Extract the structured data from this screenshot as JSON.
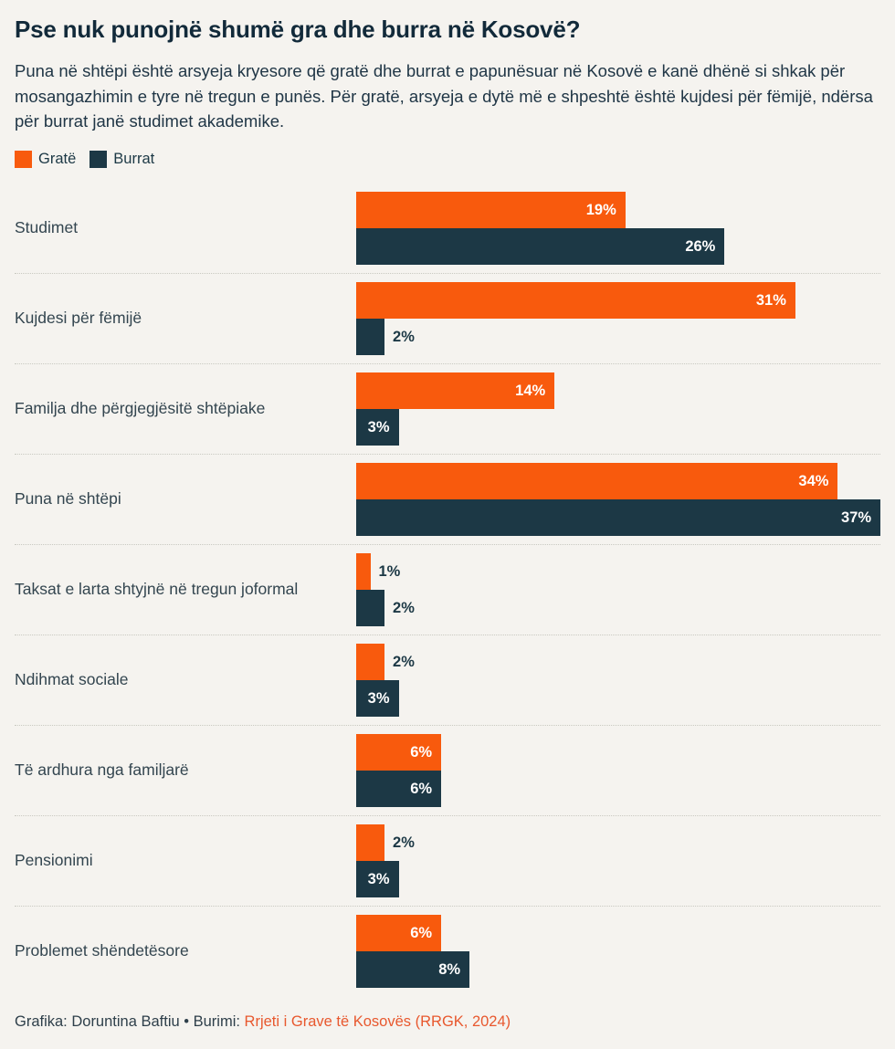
{
  "title": "Pse nuk punojnë shumë gra dhe burra në Kosovë?",
  "subtitle": "Puna në shtëpi është arsyeja kryesore që gratë dhe burrat e papunësuar në Kosovë e kanë dhënë si shkak për mosangazhimin e tyre në tregun e punës. Për gratë, arsyeja e dytë më e shpeshtë është kujdesi për fëmijë, ndërsa për burrat janë studimet akademike.",
  "legend": {
    "items": [
      {
        "label": "Gratë",
        "color": "#f85a0d"
      },
      {
        "label": "Burrat",
        "color": "#1c3845"
      }
    ]
  },
  "chart_data": {
    "type": "bar",
    "orientation": "horizontal",
    "grid": false,
    "legend_position": "top",
    "value_suffix": "%",
    "xmax": 37,
    "inside_label_min": 3,
    "categories": [
      "Studimet",
      "Kujdesi për fëmijë",
      "Familja dhe përgjegjësitë shtëpiake",
      "Puna në shtëpi",
      "Taksat e larta shtyjnë në tregun joformal",
      "Ndihmat sociale",
      "Të ardhura nga familjarë",
      "Pensionimi",
      "Problemet shëndetësore"
    ],
    "series": [
      {
        "name": "Gratë",
        "color": "#f85a0d",
        "values": [
          19,
          31,
          14,
          34,
          1,
          2,
          6,
          2,
          6
        ]
      },
      {
        "name": "Burrat",
        "color": "#1c3845",
        "values": [
          26,
          2,
          3,
          37,
          2,
          3,
          6,
          3,
          8
        ]
      }
    ],
    "colors": {
      "inside_label": "#ffffff",
      "outside_label": "#1c3845"
    }
  },
  "footer": {
    "text": "Grafika: Doruntina Baftiu • Burimi: ",
    "source": "Rrjeti i Grave të Kosovës (RRGK, 2024)",
    "source_color": "#e8582e"
  }
}
